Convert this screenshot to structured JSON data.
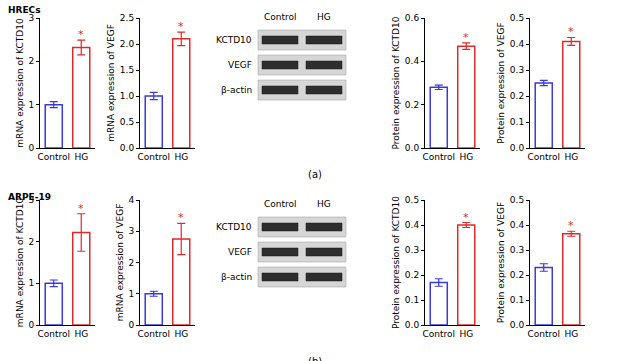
{
  "chart_data": [
    {
      "type": "bar",
      "y_label": "mRNA expression of KCTD10",
      "categories": [
        "Control",
        "HG"
      ],
      "values": [
        1.0,
        2.32
      ],
      "errors": [
        0.07,
        0.17
      ],
      "colors": [
        "#3a3ad8",
        "#e02a2a"
      ],
      "ylim": [
        0,
        3
      ],
      "yticks": [
        0,
        1,
        2,
        3
      ],
      "grid": false,
      "annotations": [
        {
          "x": "HG",
          "text": "*"
        }
      ]
    },
    {
      "type": "bar",
      "y_label": "mRNA expression of VEGF",
      "categories": [
        "Control",
        "HG"
      ],
      "values": [
        1.0,
        2.1
      ],
      "errors": [
        0.07,
        0.13
      ],
      "colors": [
        "#3a3ad8",
        "#e02a2a"
      ],
      "ylim": [
        0,
        2.5
      ],
      "yticks": [
        {
          "value": 0,
          "label": "0.0"
        },
        0.5,
        {
          "value": 1,
          "label": "1.0"
        },
        1.5,
        {
          "value": 2,
          "label": "2.0"
        },
        2.5
      ],
      "grid": false,
      "annotations": [
        {
          "x": "HG",
          "text": "*"
        }
      ]
    },
    {
      "type": "bar",
      "y_label": "Protein expression of KCTD10",
      "categories": [
        "Control",
        "HG"
      ],
      "values": [
        0.28,
        0.47
      ],
      "errors": [
        0.01,
        0.015
      ],
      "colors": [
        "#3a3ad8",
        "#e02a2a"
      ],
      "ylim": [
        0,
        0.6
      ],
      "yticks": [
        {
          "value": 0,
          "label": "0.0"
        },
        0.2,
        0.4,
        0.6
      ],
      "grid": false,
      "annotations": [
        {
          "x": "HG",
          "text": "*"
        }
      ]
    },
    {
      "type": "bar",
      "y_label": "Protein expression of VEGF",
      "categories": [
        "Control",
        "HG"
      ],
      "values": [
        0.25,
        0.41
      ],
      "errors": [
        0.01,
        0.015
      ],
      "colors": [
        "#3a3ad8",
        "#e02a2a"
      ],
      "ylim": [
        0,
        0.5
      ],
      "yticks": [
        {
          "value": 0,
          "label": "0.0"
        },
        0.1,
        0.2,
        0.3,
        0.4,
        0.5
      ],
      "grid": false,
      "annotations": [
        {
          "x": "HG",
          "text": "*"
        }
      ]
    },
    {
      "type": "bar",
      "y_label": "mRNA expression of KCTD10",
      "categories": [
        "Control",
        "HG"
      ],
      "values": [
        1.0,
        2.22
      ],
      "errors": [
        0.08,
        0.45
      ],
      "colors": [
        "#3a3ad8",
        "#e02a2a"
      ],
      "ylim": [
        0,
        3
      ],
      "yticks": [
        0,
        1,
        2,
        3
      ],
      "grid": false,
      "annotations": [
        {
          "x": "HG",
          "text": "*"
        }
      ]
    },
    {
      "type": "bar",
      "y_label": "mRNA expression of VEGF",
      "categories": [
        "Control",
        "HG"
      ],
      "values": [
        1.0,
        2.75
      ],
      "errors": [
        0.08,
        0.5
      ],
      "colors": [
        "#3a3ad8",
        "#e02a2a"
      ],
      "ylim": [
        0,
        4
      ],
      "yticks": [
        0,
        1,
        2,
        3,
        4
      ],
      "grid": false,
      "annotations": [
        {
          "x": "HG",
          "text": "*"
        }
      ]
    },
    {
      "type": "bar",
      "y_label": "Protein expression of KCTD10",
      "categories": [
        "Control",
        "HG"
      ],
      "values": [
        0.17,
        0.4
      ],
      "errors": [
        0.015,
        0.01
      ],
      "colors": [
        "#3a3ad8",
        "#e02a2a"
      ],
      "ylim": [
        0,
        0.5
      ],
      "yticks": [
        {
          "value": 0,
          "label": "0.0"
        },
        0.1,
        0.2,
        0.3,
        0.4,
        0.5
      ],
      "grid": false,
      "annotations": [
        {
          "x": "HG",
          "text": "*"
        }
      ]
    },
    {
      "type": "bar",
      "y_label": "Protein expression of VEGF",
      "categories": [
        "Control",
        "HG"
      ],
      "values": [
        0.23,
        0.365
      ],
      "errors": [
        0.015,
        0.01
      ],
      "colors": [
        "#3a3ad8",
        "#e02a2a"
      ],
      "ylim": [
        0,
        0.5
      ],
      "yticks": [
        {
          "value": 0,
          "label": "0.0"
        },
        0.1,
        0.2,
        0.3,
        0.4,
        0.5
      ],
      "grid": false,
      "annotations": [
        {
          "x": "HG",
          "text": "*"
        }
      ]
    }
  ],
  "panels": [
    {
      "title": "HRECs",
      "label": "(a)",
      "blot": {
        "columns": [
          "Control",
          "HG"
        ],
        "rows": [
          "KCTD10",
          "VEGF",
          "β-actin"
        ]
      }
    },
    {
      "title": "ARPE-19",
      "label": "(b)",
      "blot": {
        "columns": [
          "Control",
          "HG"
        ],
        "rows": [
          "KCTD10",
          "VEGF",
          "β-actin"
        ]
      }
    }
  ]
}
